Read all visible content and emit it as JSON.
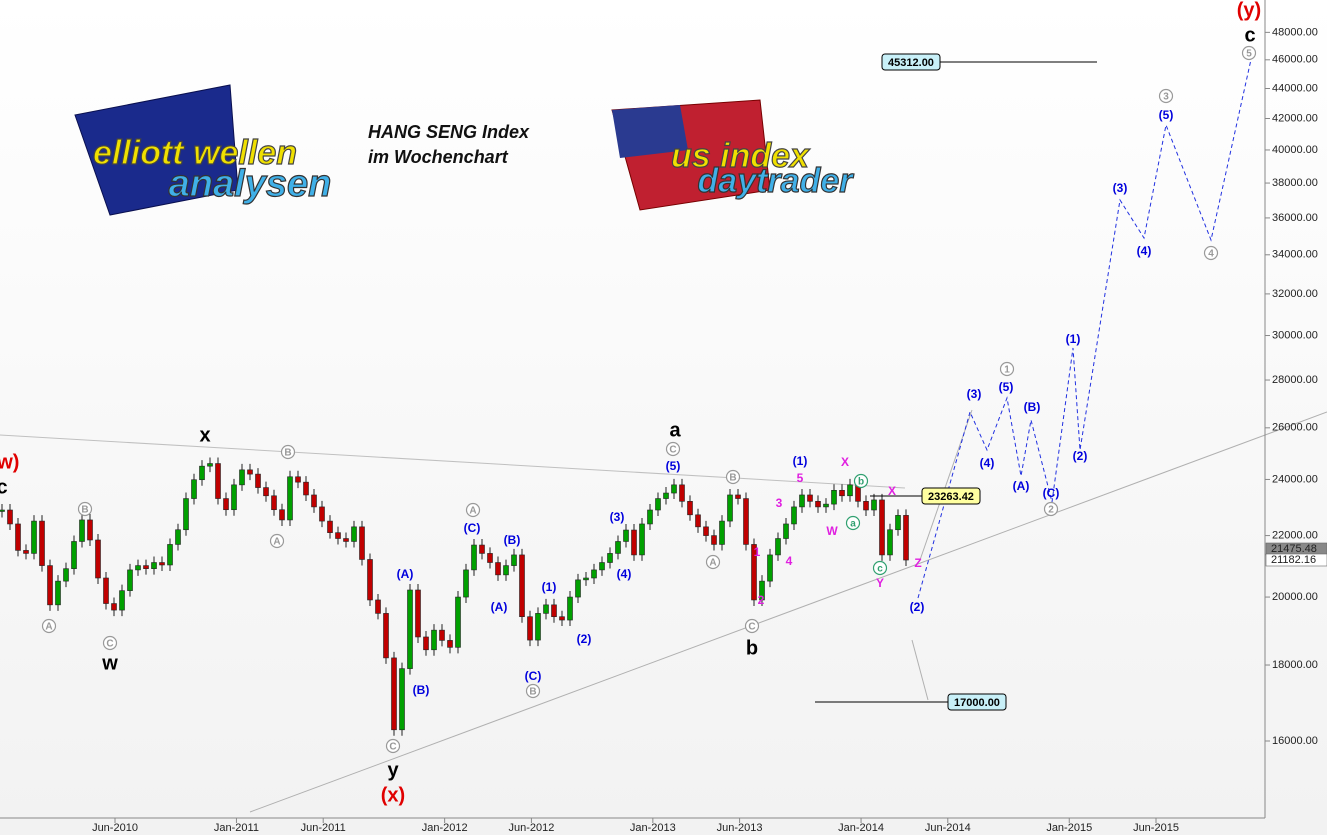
{
  "chart_data": {
    "type": "candlestick",
    "title": "HANG SENG Index",
    "subtitle": "im Wochenchart",
    "logos": [
      [
        "elliott wellen",
        "analysen"
      ],
      [
        "us index",
        "daytrader"
      ]
    ],
    "log_scale": true,
    "ylim": [
      13830,
      50470
    ],
    "yticks": [
      {
        "value": 16000,
        "label": "16000.00"
      },
      {
        "value": 18000,
        "label": "18000.00"
      },
      {
        "value": 20000,
        "label": "20000.00"
      },
      {
        "value": 22000,
        "label": "22000.00"
      },
      {
        "value": 24000,
        "label": "24000.00"
      },
      {
        "value": 26000,
        "label": "26000.00"
      },
      {
        "value": 28000,
        "label": "28000.00"
      },
      {
        "value": 30000,
        "label": "30000.00"
      },
      {
        "value": 32000,
        "label": "32000.00"
      },
      {
        "value": 34000,
        "label": "34000.00"
      },
      {
        "value": 36000,
        "label": "36000.00"
      },
      {
        "value": 38000,
        "label": "38000.00"
      },
      {
        "value": 40000,
        "label": "40000.00"
      },
      {
        "value": 42000,
        "label": "42000.00"
      },
      {
        "value": 44000,
        "label": "44000.00"
      },
      {
        "value": 46000,
        "label": "46000.00"
      },
      {
        "value": 48000,
        "label": "48000.00"
      }
    ],
    "xticks": [
      "Jun-2010",
      "Jan-2011",
      "Jun-2011",
      "Jan-2012",
      "Jun-2012",
      "Jan-2013",
      "Jun-2013",
      "Jan-2014",
      "Jun-2014",
      "Jan-2015",
      "Jun-2015"
    ],
    "series": [
      {
        "up_color": "#00a000",
        "down_color": "#c00000",
        "values": [
          22890,
          22400,
          21500,
          21400,
          22500,
          21000,
          19760,
          20500,
          20900,
          21800,
          22540,
          21850,
          20600,
          19800,
          19600,
          20200,
          20860,
          21000,
          20900,
          21100,
          21020,
          21700,
          22200,
          23300,
          23990,
          24500,
          24600,
          23300,
          22900,
          23800,
          24360,
          24200,
          23700,
          23400,
          22900,
          22540,
          24100,
          23900,
          23430,
          23000,
          22500,
          22100,
          21900,
          21800,
          22300,
          21200,
          19910,
          19500,
          18200,
          16280,
          17900,
          20220,
          18800,
          18430,
          19000,
          18700,
          18500,
          20000,
          20860,
          21680,
          21400,
          21100,
          20700,
          21000,
          21350,
          19400,
          18710,
          19500,
          19760,
          19400,
          19300,
          20000,
          20540,
          20600,
          20860,
          21100,
          21400,
          21800,
          22190,
          21350,
          22400,
          22890,
          23300,
          23500,
          23800,
          23200,
          22720,
          22300,
          22000,
          21700,
          22500,
          23430,
          23300,
          21700,
          19910,
          20500,
          21350,
          21900,
          22400,
          23000,
          23430,
          23200,
          23000,
          23100,
          23600,
          23400,
          23800,
          23200,
          22890,
          23250,
          21350,
          22200,
          22700,
          21182
        ]
      }
    ],
    "price_tags": [
      {
        "label": "21475.48",
        "color": "#888888"
      },
      {
        "label": "21182.16",
        "color": "#ffffff"
      }
    ],
    "level_boxes": [
      {
        "label": "45312.00",
        "color": "#c8f0f8"
      },
      {
        "label": "23263.42",
        "color": "#ffffa0"
      },
      {
        "label": "17000.00",
        "color": "#c8f0f8"
      }
    ],
    "annotations": [
      {
        "text": "x",
        "color": "#000000"
      },
      {
        "text": "w",
        "color": "#000000"
      },
      {
        "text": "y",
        "color": "#000000"
      },
      {
        "text": "a",
        "color": "#000000"
      },
      {
        "text": "b",
        "color": "#000000"
      },
      {
        "text": "c",
        "color": "#000000"
      },
      {
        "text": "c",
        "color": "#000000"
      },
      {
        "text": "(w)",
        "color": "#e00000"
      },
      {
        "text": "(x)",
        "color": "#e00000"
      },
      {
        "text": "(y)",
        "color": "#e00000"
      },
      {
        "text": "(A)",
        "color": "#0000dd"
      },
      {
        "text": "(B)",
        "color": "#0000dd"
      },
      {
        "text": "(C)",
        "color": "#0000dd"
      },
      {
        "text": "(B)",
        "color": "#0000dd"
      },
      {
        "text": "(A)",
        "color": "#0000dd"
      },
      {
        "text": "(C)",
        "color": "#0000dd"
      },
      {
        "text": "(1)",
        "color": "#0000dd"
      },
      {
        "text": "(2)",
        "color": "#0000dd"
      },
      {
        "text": "(3)",
        "color": "#0000dd"
      },
      {
        "text": "(4)",
        "color": "#0000dd"
      },
      {
        "text": "(5)",
        "color": "#0000dd"
      },
      {
        "text": "(1)",
        "color": "#0000dd"
      },
      {
        "text": "(2)",
        "color": "#0000dd"
      },
      {
        "text": "(3)",
        "color": "#0000dd"
      },
      {
        "text": "(4)",
        "color": "#0000dd"
      },
      {
        "text": "(5)",
        "color": "#0000dd"
      },
      {
        "text": "(A)",
        "color": "#0000dd"
      },
      {
        "text": "(B)",
        "color": "#0000dd"
      },
      {
        "text": "(C)",
        "color": "#0000dd"
      },
      {
        "text": "(1)",
        "color": "#0000dd"
      },
      {
        "text": "(2)",
        "color": "#0000dd"
      },
      {
        "text": "(3)",
        "color": "#0000dd"
      },
      {
        "text": "(4)",
        "color": "#0000dd"
      },
      {
        "text": "(5)",
        "color": "#0000dd"
      },
      {
        "text": "5",
        "color": "#e020e0"
      },
      {
        "text": "3",
        "color": "#e020e0"
      },
      {
        "text": "1",
        "color": "#e020e0"
      },
      {
        "text": "4",
        "color": "#e020e0"
      },
      {
        "text": "2",
        "color": "#e020e0"
      },
      {
        "text": "W",
        "color": "#e020e0"
      },
      {
        "text": "X",
        "color": "#e020e0"
      },
      {
        "text": "X",
        "color": "#e020e0"
      },
      {
        "text": "Y",
        "color": "#e020e0"
      },
      {
        "text": "Z",
        "color": "#e020e0"
      },
      {
        "text": "A",
        "color": "#999999",
        "circled": true
      },
      {
        "text": "B",
        "color": "#999999",
        "circled": true
      },
      {
        "text": "C",
        "color": "#999999",
        "circled": true
      },
      {
        "text": "B",
        "color": "#999999",
        "circled": true
      },
      {
        "text": "A",
        "color": "#999999",
        "circled": true
      },
      {
        "text": "C",
        "color": "#999999",
        "circled": true
      },
      {
        "text": "A",
        "color": "#999999",
        "circled": true
      },
      {
        "text": "B",
        "color": "#999999",
        "circled": true
      },
      {
        "text": "C",
        "color": "#999999",
        "circled": true
      },
      {
        "text": "B",
        "color": "#999999",
        "circled": true
      },
      {
        "text": "A",
        "color": "#999999",
        "circled": true
      },
      {
        "text": "C",
        "color": "#999999",
        "circled": true
      },
      {
        "text": "1",
        "color": "#999999",
        "circled": true
      },
      {
        "text": "2",
        "color": "#999999",
        "circled": true
      },
      {
        "text": "3",
        "color": "#999999",
        "circled": true
      },
      {
        "text": "4",
        "color": "#999999",
        "circled": true
      },
      {
        "text": "5",
        "color": "#999999",
        "circled": true
      },
      {
        "text": "a",
        "color": "#30a070",
        "circled": true
      },
      {
        "text": "b",
        "color": "#30a070",
        "circled": true
      },
      {
        "text": "c",
        "color": "#30a070",
        "circled": true
      }
    ]
  }
}
